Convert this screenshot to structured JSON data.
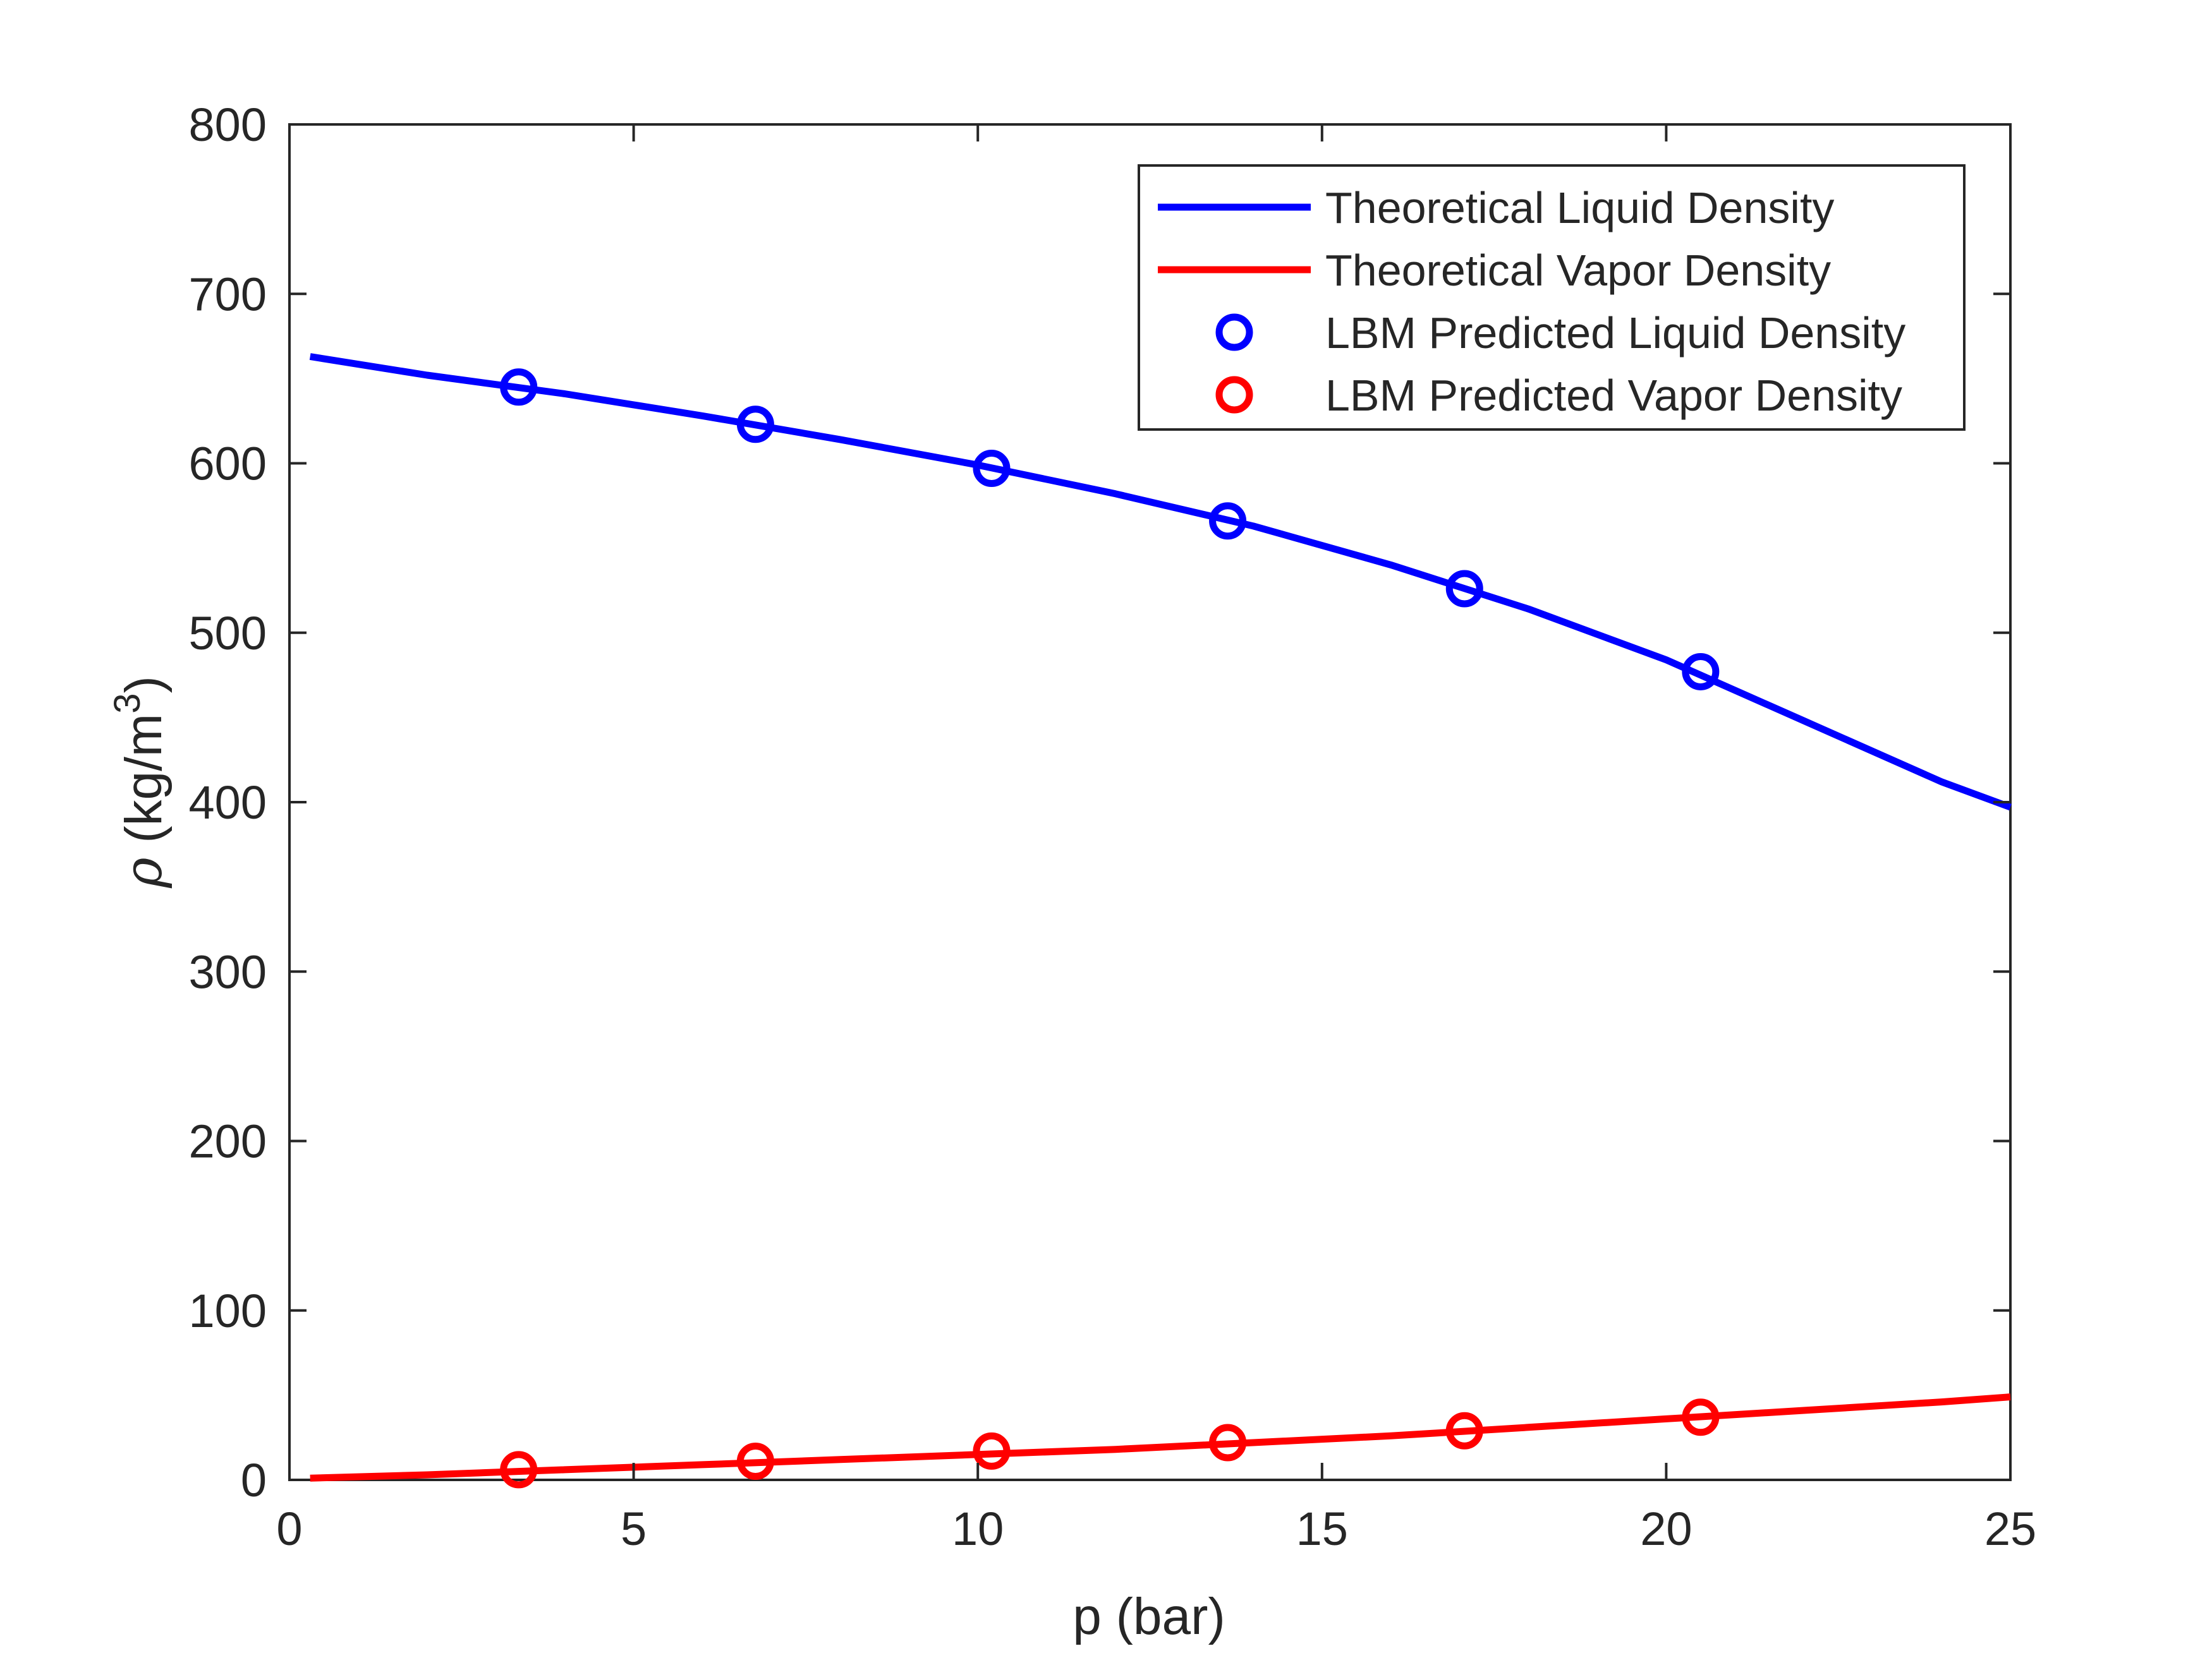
{
  "chart_data": {
    "type": "line",
    "title": "",
    "xlabel": "p (bar)",
    "ylabel": {
      "symbol": "ρ",
      "unit": "(kg/m",
      "superscript": "3",
      "close": ")"
    },
    "xlim": [
      0,
      25
    ],
    "ylim": [
      0,
      800
    ],
    "xticks": [
      0,
      5,
      10,
      15,
      20,
      25
    ],
    "yticks": [
      0,
      100,
      200,
      300,
      400,
      500,
      600,
      700,
      800
    ],
    "grid": false,
    "legend_position": "top-right",
    "series": [
      {
        "name": "Theoretical Liquid Density",
        "kind": "line",
        "color": "#0000ff",
        "x": [
          0.3,
          2,
          4,
          6,
          8,
          10,
          12,
          14,
          16,
          18,
          20,
          22,
          24,
          25
        ],
        "y": [
          663,
          652,
          641,
          628,
          614,
          599,
          582,
          563,
          540,
          514,
          484,
          448,
          412,
          397
        ]
      },
      {
        "name": "Theoretical Vapor Density",
        "kind": "line",
        "color": "#ff0000",
        "x": [
          0.3,
          2,
          4,
          6,
          8,
          10,
          12,
          14,
          16,
          18,
          20,
          22,
          24,
          25
        ],
        "y": [
          1,
          3,
          6,
          9,
          12,
          15,
          18,
          22,
          26,
          31,
          36,
          41,
          46,
          49
        ]
      },
      {
        "name": "LBM Predicted Liquid Density",
        "kind": "marker",
        "color": "#0000ff",
        "x": [
          3.33,
          6.77,
          10.2,
          13.63,
          17.07,
          20.5
        ],
        "y": [
          645,
          623,
          597,
          566,
          526,
          477
        ]
      },
      {
        "name": "LBM Predicted Vapor Density",
        "kind": "marker",
        "color": "#ff0000",
        "x": [
          3.33,
          6.77,
          10.2,
          13.63,
          17.07,
          20.5
        ],
        "y": [
          6,
          11,
          17,
          22,
          29,
          37
        ]
      }
    ]
  }
}
